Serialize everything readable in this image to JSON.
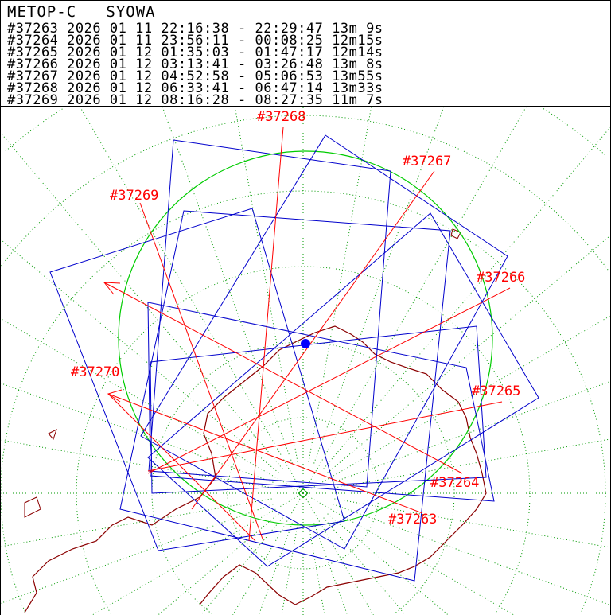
{
  "header": {
    "satellite": "METOP-C",
    "station": "SYOWA",
    "passes": [
      {
        "orbit": "#37263",
        "year": "2026",
        "month": "01",
        "day": "11",
        "start": "22:16:38",
        "end": "22:29:47",
        "duration": "13m 9s"
      },
      {
        "orbit": "#37264",
        "year": "2026",
        "month": "01",
        "day": "11",
        "start": "23:56:11",
        "end": "00:08:25",
        "duration": "12m15s"
      },
      {
        "orbit": "#37265",
        "year": "2026",
        "month": "01",
        "day": "12",
        "start": "01:35:03",
        "end": "01:47:17",
        "duration": "12m14s"
      },
      {
        "orbit": "#37266",
        "year": "2026",
        "month": "01",
        "day": "12",
        "start": "03:13:41",
        "end": "03:26:48",
        "duration": "13m 8s"
      },
      {
        "orbit": "#37267",
        "year": "2026",
        "month": "01",
        "day": "12",
        "start": "04:52:58",
        "end": "05:06:53",
        "duration": "13m55s"
      },
      {
        "orbit": "#37268",
        "year": "2026",
        "month": "01",
        "day": "12",
        "start": "06:33:41",
        "end": "06:47:14",
        "duration": "13m33s"
      },
      {
        "orbit": "#37269",
        "year": "2026",
        "month": "01",
        "day": "12",
        "start": "08:16:28",
        "end": "08:27:35",
        "duration": "11m 7s"
      }
    ]
  },
  "map": {
    "track_labels": [
      "#37263",
      "#37264",
      "#37265",
      "#37266",
      "#37267",
      "#37268",
      "#37269",
      "#37270"
    ],
    "station_marker": "blue-dot",
    "colors": {
      "track": "#ff0000",
      "swath": "#0000cc",
      "reception_circle": "#00cc00",
      "grid": "#009900",
      "coastline": "#8b0000",
      "station": "#0000ff"
    }
  }
}
